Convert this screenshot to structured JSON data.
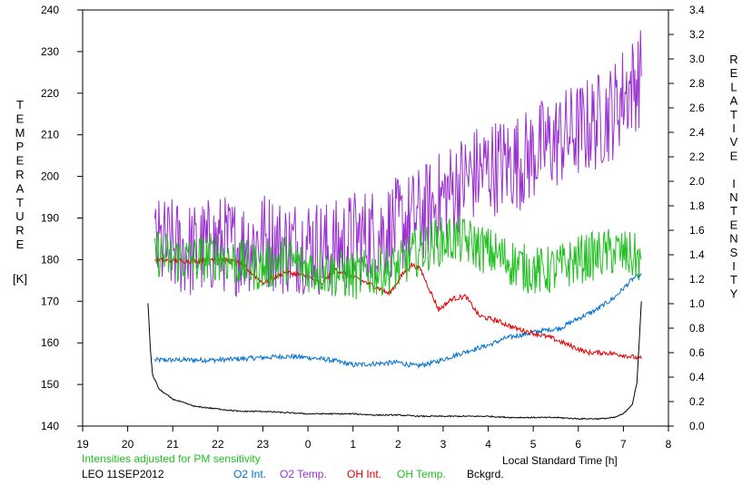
{
  "chart_data": {
    "type": "line",
    "xlabel": "Local Standard Time [h]",
    "ylabel_left": "TEMPERATURE",
    "ylabel_left_unit": "[K]",
    "ylabel_right": "RELATIVE INTENSITY",
    "x_ticks": [
      19,
      20,
      21,
      22,
      23,
      0,
      1,
      2,
      3,
      4,
      5,
      6,
      7,
      8
    ],
    "x_ticks_hours": [
      19,
      20,
      21,
      22,
      23,
      24,
      25,
      26,
      27,
      28,
      29,
      30,
      31,
      32
    ],
    "xlim": [
      19,
      32
    ],
    "ylim_left": [
      140,
      240
    ],
    "y_ticks_left": [
      140,
      150,
      160,
      170,
      180,
      190,
      200,
      210,
      220,
      230,
      240
    ],
    "ylim_right": [
      0.0,
      3.4
    ],
    "y_ticks_right": [
      "0.0",
      "0.2",
      "0.4",
      "0.6",
      "0.8",
      "1.0",
      "1.2",
      "1.4",
      "1.6",
      "1.8",
      "2.0",
      "2.2",
      "2.4",
      "2.6",
      "2.8",
      "3.0",
      "3.2",
      "3.4"
    ],
    "note": "Intensities adjusted for PM sensitivity",
    "station": "LEO 11SEP2012",
    "grid": false,
    "series": [
      {
        "name": "O2 Int.",
        "axis": "right",
        "color": "#0070d0",
        "noise": 0.02,
        "x": [
          20.6,
          21.0,
          21.5,
          22.0,
          22.5,
          23.0,
          23.5,
          24.0,
          24.5,
          25.0,
          25.5,
          26.0,
          26.4,
          26.8,
          27.2,
          27.6,
          28.0,
          28.4,
          28.8,
          29.2,
          29.6,
          30.0,
          30.4,
          30.8,
          31.2,
          31.4
        ],
        "y": [
          0.54,
          0.54,
          0.54,
          0.54,
          0.55,
          0.56,
          0.57,
          0.56,
          0.54,
          0.5,
          0.51,
          0.52,
          0.49,
          0.52,
          0.57,
          0.62,
          0.66,
          0.72,
          0.75,
          0.78,
          0.8,
          0.88,
          0.95,
          1.05,
          1.2,
          1.24
        ]
      },
      {
        "name": "O2 Temp.",
        "axis": "left",
        "color": "#9a30d0",
        "noise": 12,
        "x": [
          20.6,
          21.0,
          21.5,
          22.0,
          22.5,
          23.0,
          23.5,
          24.0,
          24.5,
          25.0,
          25.5,
          26.0,
          26.4,
          26.8,
          27.2,
          27.6,
          28.0,
          28.4,
          28.8,
          29.2,
          29.6,
          30.0,
          30.4,
          30.8,
          31.0,
          31.2,
          31.4
        ],
        "y": [
          183,
          183,
          182,
          184,
          183,
          185,
          183,
          184,
          182,
          185,
          186,
          188,
          190,
          193,
          197,
          200,
          202,
          203,
          204,
          207,
          209,
          211,
          213,
          216,
          220,
          222,
          224
        ]
      },
      {
        "name": "OH Int.",
        "axis": "right",
        "color": "#e00000",
        "noise": 0.02,
        "x": [
          20.6,
          21.0,
          21.5,
          22.0,
          22.5,
          23.0,
          23.5,
          24.0,
          24.3,
          24.6,
          25.0,
          25.5,
          25.8,
          26.1,
          26.3,
          26.5,
          26.9,
          27.2,
          27.5,
          27.8,
          28.2,
          28.6,
          29.0,
          29.4,
          29.8,
          30.2,
          30.6,
          31.0,
          31.4
        ],
        "y": [
          1.36,
          1.35,
          1.35,
          1.37,
          1.33,
          1.17,
          1.26,
          1.22,
          1.16,
          1.28,
          1.22,
          1.14,
          1.08,
          1.24,
          1.32,
          1.28,
          0.95,
          1.04,
          1.06,
          0.9,
          0.86,
          0.8,
          0.76,
          0.72,
          0.66,
          0.6,
          0.6,
          0.58,
          0.55
        ]
      },
      {
        "name": "OH Temp.",
        "axis": "left",
        "color": "#20c020",
        "noise": 6,
        "x": [
          20.6,
          21.0,
          21.5,
          22.0,
          22.5,
          23.0,
          23.5,
          24.0,
          24.5,
          25.0,
          25.5,
          26.0,
          26.3,
          26.8,
          27.2,
          27.6,
          28.0,
          28.4,
          28.8,
          29.2,
          29.6,
          30.0,
          30.4,
          30.8,
          31.4
        ],
        "y": [
          182,
          180,
          180,
          181,
          179,
          178,
          180,
          178,
          177,
          176,
          177,
          178,
          181,
          184,
          185,
          184,
          182,
          180,
          178,
          177,
          178,
          180,
          181,
          182,
          180
        ]
      },
      {
        "name": "Bckgrd.",
        "axis": "right",
        "color": "#000000",
        "noise": 0.005,
        "x": [
          20.45,
          20.5,
          20.55,
          20.7,
          21.0,
          21.5,
          22.0,
          22.5,
          23.0,
          23.5,
          24.0,
          24.5,
          25.0,
          25.5,
          26.0,
          26.5,
          27.0,
          27.5,
          28.0,
          28.5,
          29.0,
          29.5,
          30.0,
          30.5,
          30.8,
          31.0,
          31.2,
          31.3,
          31.4
        ],
        "y": [
          1.0,
          0.65,
          0.42,
          0.3,
          0.22,
          0.16,
          0.14,
          0.12,
          0.12,
          0.11,
          0.1,
          0.1,
          0.1,
          0.09,
          0.09,
          0.08,
          0.08,
          0.08,
          0.08,
          0.07,
          0.07,
          0.07,
          0.06,
          0.06,
          0.07,
          0.1,
          0.18,
          0.35,
          1.02
        ]
      }
    ]
  }
}
